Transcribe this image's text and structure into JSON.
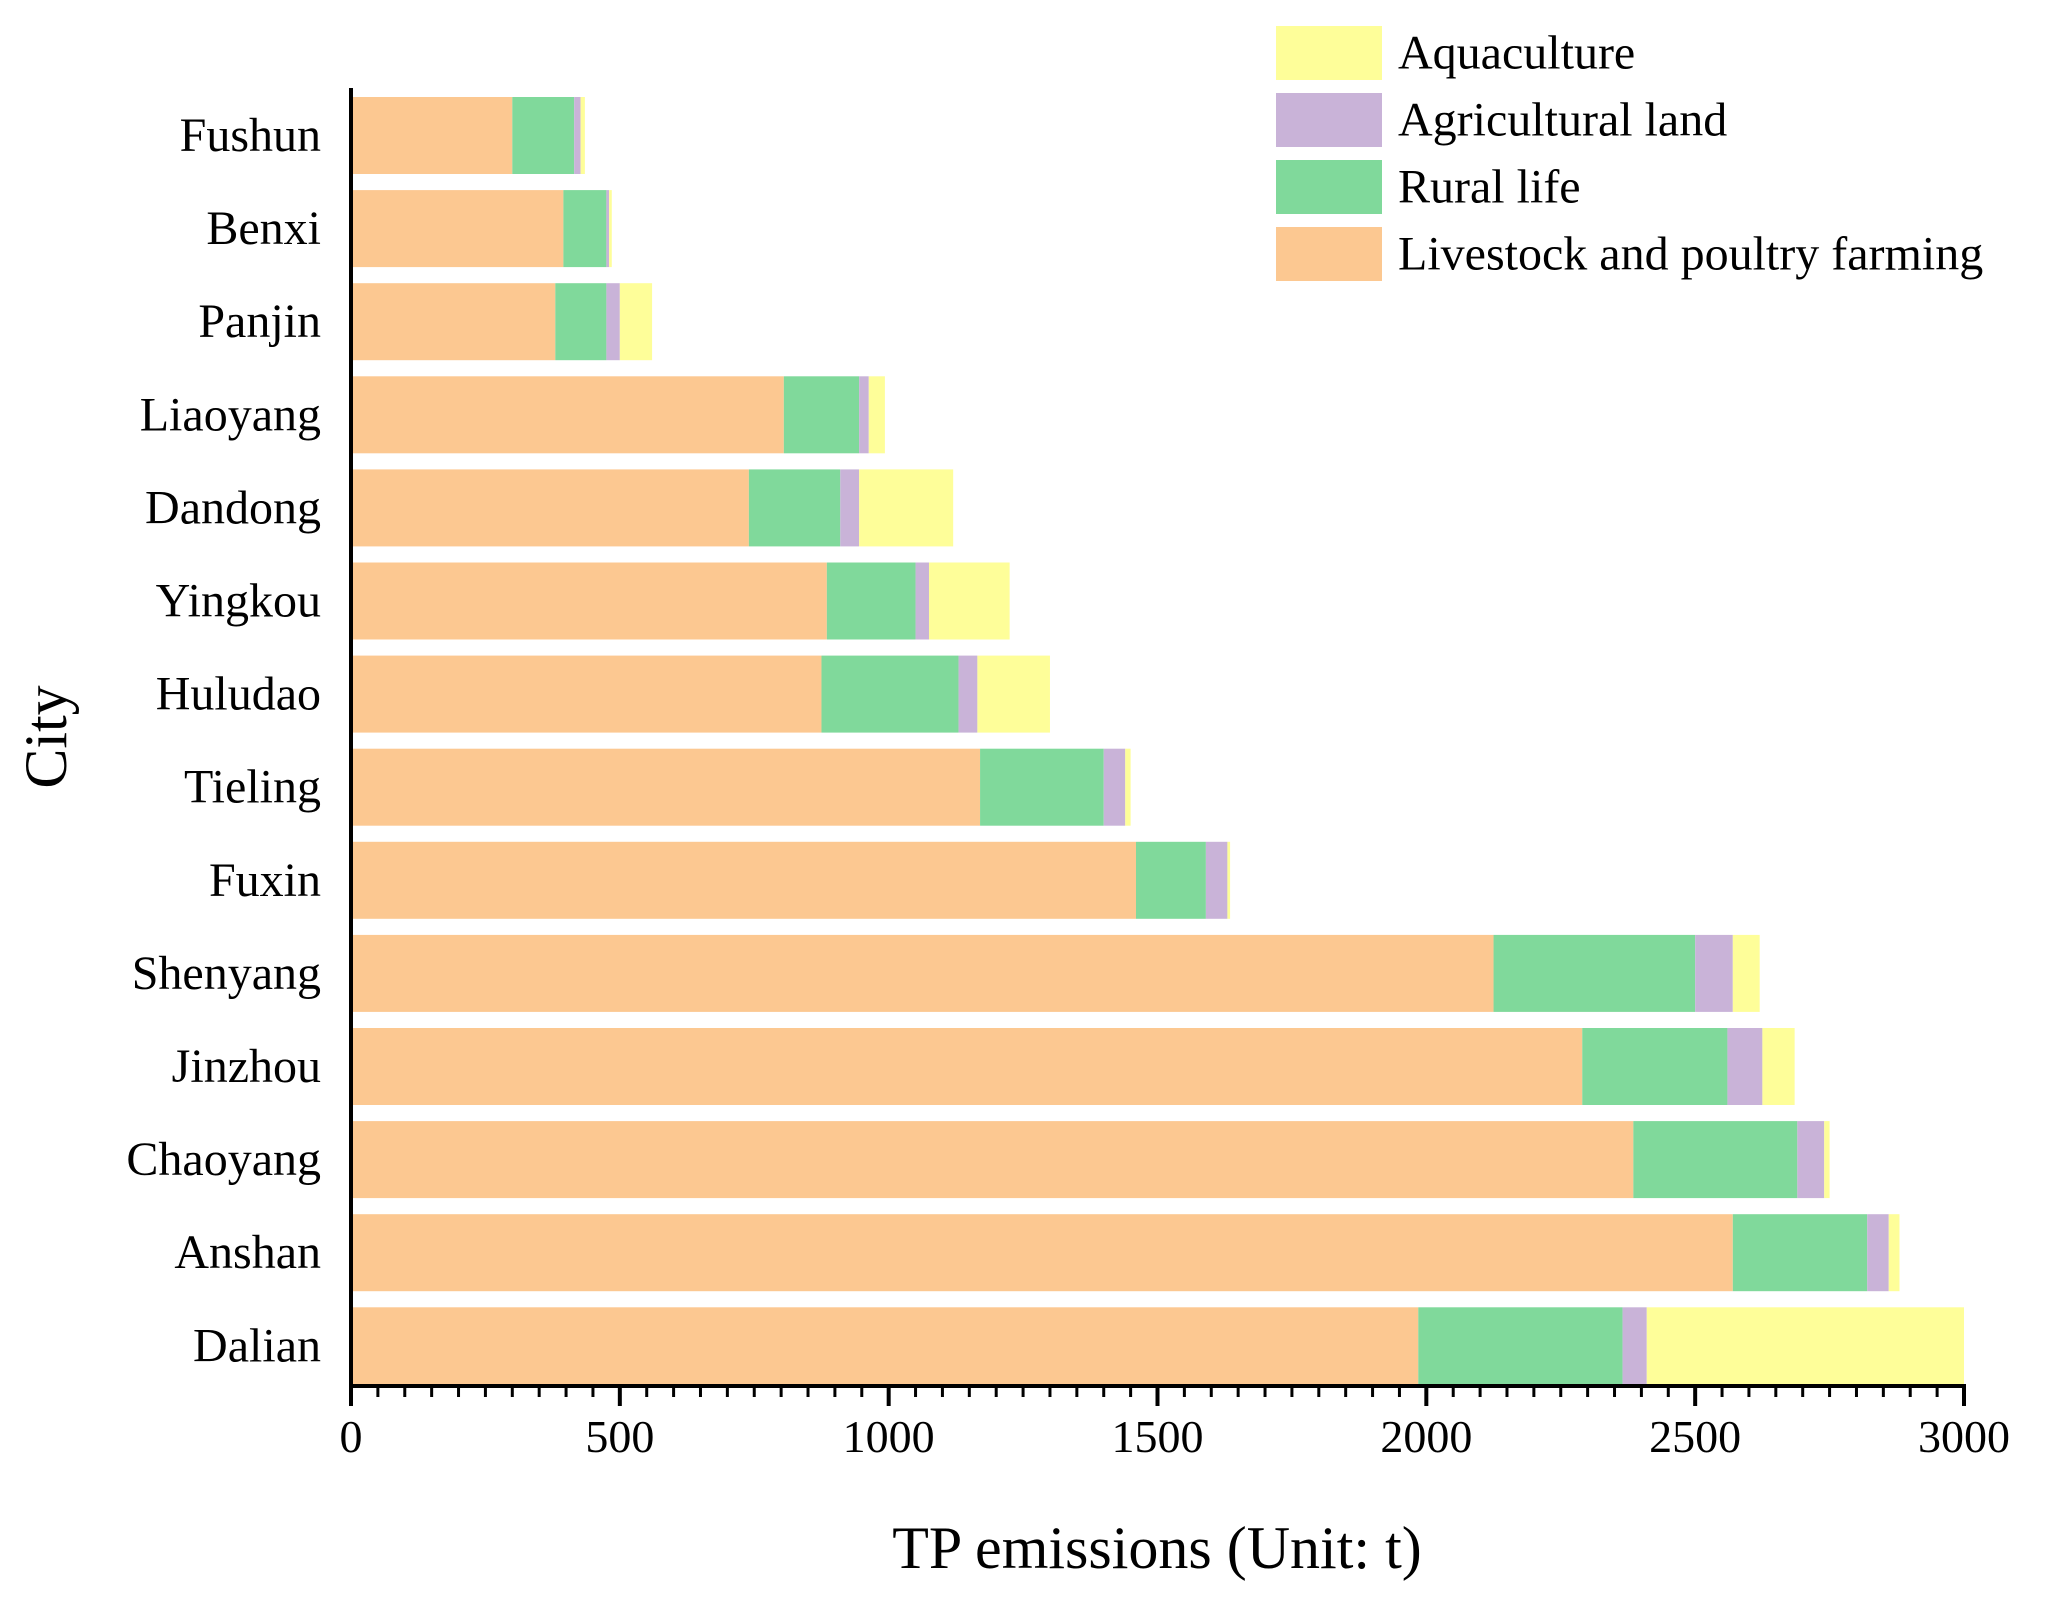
{
  "colors": {
    "livestock": "#FCC891",
    "rural": "#80D99B",
    "agri": "#C9B3D8",
    "aqua": "#FEFE99",
    "axis": "#000000"
  },
  "chart_data": {
    "type": "bar",
    "orientation": "horizontal",
    "stacked": true,
    "title": "",
    "xlabel": "TP emissions (Unit: t)",
    "ylabel": "City",
    "xlim": [
      0,
      3000
    ],
    "xticks": [
      0,
      500,
      1000,
      1500,
      2000,
      2500,
      3000
    ],
    "grid": false,
    "legend_position": "top-right",
    "categories": [
      "Fushun",
      "Benxi",
      "Panjin",
      "Liaoyang",
      "Dandong",
      "Yingkou",
      "Huludao",
      "Tieling",
      "Fuxin",
      "Shenyang",
      "Jinzhou",
      "Chaoyang",
      "Anshan",
      "Dalian"
    ],
    "series": [
      {
        "name": "Livestock and poultry farming",
        "color_key": "livestock",
        "values": [
          300,
          395,
          380,
          805,
          740,
          885,
          875,
          1170,
          1460,
          2125,
          2290,
          2385,
          2570,
          1985
        ]
      },
      {
        "name": "Rural life",
        "color_key": "rural",
        "values": [
          115,
          80,
          95,
          140,
          170,
          165,
          255,
          230,
          130,
          375,
          270,
          305,
          250,
          380
        ]
      },
      {
        "name": "Agricultural land",
        "color_key": "agri",
        "values": [
          12,
          5,
          25,
          18,
          35,
          25,
          35,
          40,
          40,
          70,
          65,
          50,
          40,
          45
        ]
      },
      {
        "name": "Aquaculture",
        "color_key": "aqua",
        "values": [
          8,
          5,
          60,
          30,
          175,
          150,
          135,
          10,
          5,
          50,
          60,
          10,
          20,
          590
        ]
      }
    ],
    "legend": [
      "Aquaculture",
      "Agricultural land",
      "Rural life",
      "Livestock and poultry farming"
    ]
  }
}
